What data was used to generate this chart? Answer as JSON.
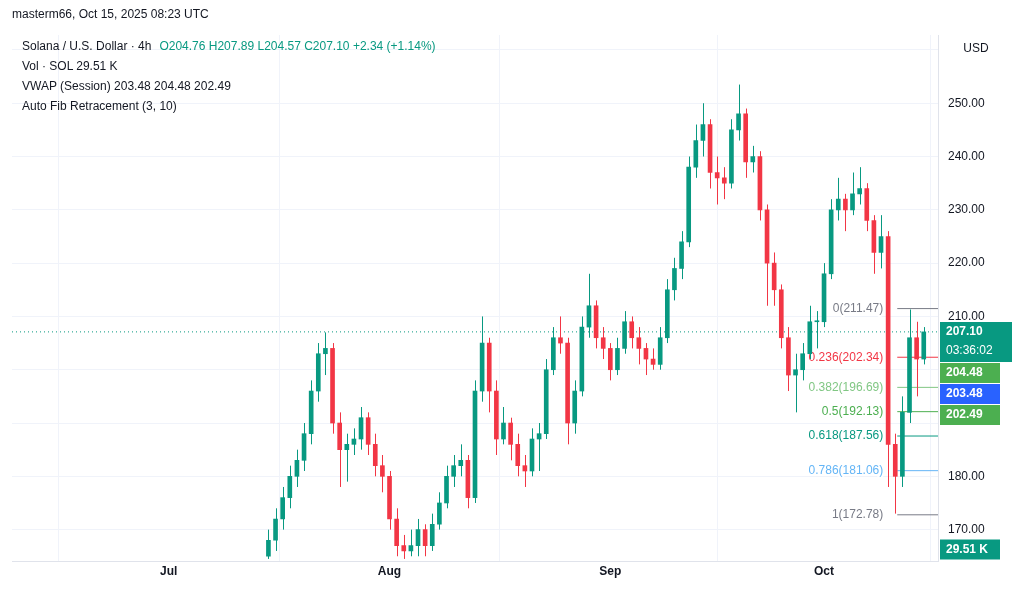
{
  "chart_data": {
    "type": "candlestick",
    "title": "Solana / U.S. Dollar · 4h",
    "subtitle": "O204.76 H207.89 L204.57 C207.10 +2.34 (+1.14%)",
    "annotations": [
      "Vol · SOL 29.51 K",
      "VWAP (Session) 203.48 204.48 202.49",
      "Auto Fib Retracement (3, 10)",
      "USD",
      "03:36:02",
      "29.51 K",
      "masterm66, Oct 15, 2025 08:23 UTC",
      "204.48",
      "203.48",
      "202.49"
    ],
    "x": [
      "2025-07-15",
      "2025-07-16",
      "2025-07-17",
      "2025-07-18",
      "2025-07-19",
      "2025-07-20",
      "2025-07-21",
      "2025-07-22",
      "2025-07-23",
      "2025-07-24",
      "2025-07-25",
      "2025-07-26",
      "2025-07-27",
      "2025-07-28",
      "2025-07-29",
      "2025-07-30",
      "2025-07-31",
      "2025-08-01",
      "2025-08-02",
      "2025-08-03",
      "2025-08-04",
      "2025-08-05",
      "2025-08-06",
      "2025-08-07",
      "2025-08-08",
      "2025-08-09",
      "2025-08-10",
      "2025-08-11",
      "2025-08-12",
      "2025-08-13",
      "2025-08-14",
      "2025-08-15",
      "2025-08-16",
      "2025-08-17",
      "2025-08-18",
      "2025-08-19",
      "2025-08-20",
      "2025-08-21",
      "2025-08-22",
      "2025-08-23",
      "2025-08-24",
      "2025-08-25",
      "2025-08-26",
      "2025-08-27",
      "2025-08-28",
      "2025-08-29",
      "2025-08-30",
      "2025-08-31",
      "2025-09-01",
      "2025-09-02",
      "2025-09-03",
      "2025-09-04",
      "2025-09-05",
      "2025-09-06",
      "2025-09-07",
      "2025-09-08",
      "2025-09-09",
      "2025-09-10",
      "2025-09-11",
      "2025-09-12",
      "2025-09-13",
      "2025-09-14",
      "2025-09-15",
      "2025-09-16",
      "2025-09-17",
      "2025-09-18",
      "2025-09-19",
      "2025-09-20",
      "2025-09-21",
      "2025-09-22",
      "2025-09-23",
      "2025-09-24",
      "2025-09-25",
      "2025-09-26",
      "2025-09-27",
      "2025-09-28",
      "2025-09-29",
      "2025-09-30",
      "2025-10-01",
      "2025-10-02",
      "2025-10-03",
      "2025-10-04",
      "2025-10-05",
      "2025-10-06",
      "2025-10-07",
      "2025-10-08",
      "2025-10-09",
      "2025-10-10",
      "2025-10-11",
      "2025-10-12",
      "2025-10-13",
      "2025-10-14",
      "2025-10-15"
    ],
    "ohlc": [
      [
        165,
        170,
        164.5,
        168
      ],
      [
        168,
        174,
        166,
        172
      ],
      [
        172,
        178,
        170,
        176
      ],
      [
        176,
        182,
        174,
        180
      ],
      [
        180,
        185,
        178,
        183
      ],
      [
        183,
        190,
        181,
        188
      ],
      [
        188,
        198,
        186,
        196
      ],
      [
        196,
        205,
        194,
        203
      ],
      [
        203,
        207,
        199,
        204
      ],
      [
        204,
        205,
        188,
        190
      ],
      [
        190,
        192,
        178,
        185
      ],
      [
        185,
        188,
        179,
        186
      ],
      [
        186,
        189,
        184,
        187
      ],
      [
        187,
        193,
        185,
        191
      ],
      [
        191,
        192,
        184,
        186
      ],
      [
        186,
        188,
        180,
        182
      ],
      [
        182,
        184,
        177,
        180
      ],
      [
        180,
        181,
        170,
        172
      ],
      [
        172,
        174,
        165,
        167
      ],
      [
        167,
        169,
        164.5,
        166
      ],
      [
        166,
        170,
        165,
        167
      ],
      [
        167,
        172,
        165,
        170
      ],
      [
        170,
        171,
        165,
        167
      ],
      [
        167,
        173,
        166,
        171
      ],
      [
        171,
        177,
        170,
        175
      ],
      [
        175,
        182,
        174,
        180
      ],
      [
        180,
        184,
        178,
        182
      ],
      [
        182,
        186,
        180,
        183
      ],
      [
        183,
        184,
        174,
        176
      ],
      [
        176,
        198,
        175,
        196
      ],
      [
        196,
        210,
        194,
        205
      ],
      [
        205,
        206,
        192,
        196
      ],
      [
        196,
        198,
        184,
        187
      ],
      [
        187,
        193,
        186,
        190
      ],
      [
        190,
        191,
        183,
        186
      ],
      [
        186,
        188,
        180,
        182
      ],
      [
        182,
        184,
        178,
        181
      ],
      [
        181,
        189,
        180,
        187
      ],
      [
        187,
        190,
        181,
        188
      ],
      [
        188,
        202,
        187,
        200
      ],
      [
        200,
        208,
        199,
        206
      ],
      [
        206,
        210,
        203,
        205
      ],
      [
        205,
        206,
        186,
        190
      ],
      [
        190,
        198,
        188,
        196
      ],
      [
        196,
        210,
        195,
        208
      ],
      [
        208,
        218,
        206,
        212
      ],
      [
        212,
        213,
        204,
        206
      ],
      [
        206,
        208,
        202,
        204
      ],
      [
        204,
        205,
        198,
        200
      ],
      [
        200,
        206,
        199,
        204
      ],
      [
        204,
        211,
        203,
        209
      ],
      [
        209,
        210,
        204,
        206
      ],
      [
        206,
        208,
        201,
        204
      ],
      [
        204,
        205,
        199,
        202
      ],
      [
        202,
        204,
        200,
        201
      ],
      [
        201,
        208,
        200,
        206
      ],
      [
        206,
        217,
        205,
        215
      ],
      [
        215,
        221,
        213,
        219
      ],
      [
        219,
        226,
        217,
        224
      ],
      [
        224,
        240,
        223,
        238
      ],
      [
        238,
        246,
        236,
        243
      ],
      [
        243,
        250,
        240,
        246
      ],
      [
        246,
        247,
        234,
        237
      ],
      [
        237,
        240,
        231,
        236
      ],
      [
        236,
        238,
        232,
        235
      ],
      [
        235,
        247,
        234,
        245
      ],
      [
        245,
        253.5,
        243,
        248
      ],
      [
        248,
        249,
        236,
        239
      ],
      [
        239,
        242,
        237,
        240
      ],
      [
        240,
        241,
        228,
        230
      ],
      [
        230,
        231,
        212,
        220
      ],
      [
        220,
        222,
        212,
        215
      ],
      [
        215,
        216,
        204,
        206
      ],
      [
        206,
        208,
        196,
        199
      ],
      [
        199,
        203,
        192,
        200
      ],
      [
        200,
        205,
        198,
        203
      ],
      [
        203,
        212,
        202,
        209
      ],
      [
        209,
        211,
        204,
        209
      ],
      [
        209,
        220,
        208,
        218
      ],
      [
        218,
        232,
        217,
        230
      ],
      [
        230,
        236,
        228,
        232
      ],
      [
        232,
        233,
        226,
        230
      ],
      [
        230,
        237,
        229,
        233
      ],
      [
        233,
        238,
        231,
        234
      ],
      [
        234,
        235,
        226,
        228
      ],
      [
        228,
        229,
        218,
        222
      ],
      [
        222,
        229,
        219,
        225
      ],
      [
        225,
        226,
        178,
        186
      ],
      [
        186,
        188,
        173,
        180
      ],
      [
        180,
        195,
        178,
        192
      ],
      [
        192,
        211.3,
        190,
        206
      ],
      [
        206,
        209,
        195,
        202
      ],
      [
        202,
        208,
        201,
        207.1
      ]
    ],
    "colors": [
      "#089981",
      "#089981",
      "#089981",
      "#089981",
      "#089981",
      "#089981",
      "#089981",
      "#089981",
      "#089981",
      "#f23645",
      "#f23645",
      "#089981",
      "#089981",
      "#089981",
      "#f23645",
      "#f23645",
      "#f23645",
      "#f23645",
      "#f23645",
      "#f23645",
      "#089981",
      "#089981",
      "#f23645",
      "#089981",
      "#089981",
      "#089981",
      "#089981",
      "#089981",
      "#f23645",
      "#089981",
      "#089981",
      "#f23645",
      "#f23645",
      "#089981",
      "#f23645",
      "#f23645",
      "#f23645",
      "#089981",
      "#089981",
      "#089981",
      "#089981",
      "#f23645",
      "#f23645",
      "#089981",
      "#089981",
      "#089981",
      "#f23645",
      "#f23645",
      "#f23645",
      "#089981",
      "#089981",
      "#f23645",
      "#f23645",
      "#f23645",
      "#f23645",
      "#089981",
      "#089981",
      "#089981",
      "#089981",
      "#089981",
      "#089981",
      "#089981",
      "#f23645",
      "#f23645",
      "#f23645",
      "#089981",
      "#089981",
      "#f23645",
      "#089981",
      "#f23645",
      "#f23645",
      "#f23645",
      "#f23645",
      "#f23645",
      "#089981",
      "#089981",
      "#089981",
      "#089981",
      "#089981",
      "#089981",
      "#089981",
      "#f23645",
      "#089981",
      "#089981",
      "#f23645",
      "#f23645",
      "#089981",
      "#f23645",
      "#f23645",
      "#089981",
      "#089981",
      "#f23645",
      "#089981"
    ],
    "xlim": [
      "2025-06-09",
      "2025-10-17"
    ],
    "xticks": [
      {
        "value": "2025-07-01",
        "label": "Jul"
      },
      {
        "value": "2025-08-01",
        "label": "Aug"
      },
      {
        "value": "2025-09-01",
        "label": "Sep"
      },
      {
        "value": "2025-10-01",
        "label": "Oct"
      }
    ],
    "ylim": [
      164,
      262.8
    ],
    "yticks": [
      {
        "value": 170,
        "label": "170.00"
      },
      {
        "value": 180,
        "label": "180.00"
      },
      {
        "value": 190,
        "label": null
      },
      {
        "value": 200,
        "label": null
      },
      {
        "value": 210,
        "label": "210.00"
      },
      {
        "value": 220,
        "label": "220.00"
      },
      {
        "value": 230,
        "label": "230.00"
      },
      {
        "value": 240,
        "label": "240.00"
      },
      {
        "value": 250,
        "label": "250.00"
      },
      {
        "value": 260,
        "label": null
      }
    ],
    "ref_lines": [
      {
        "axis": "y",
        "value": 207.1,
        "label": "207.10",
        "color": "#089981",
        "line_style": "dotted"
      },
      {
        "axis": "y",
        "value": 211.47,
        "label": "0(211.47)",
        "color": "#787b86",
        "line_style": "solid"
      },
      {
        "axis": "y",
        "value": 202.34,
        "label": "0.236(202.34)",
        "color": "#f23645",
        "line_style": "solid"
      },
      {
        "axis": "y",
        "value": 196.69,
        "label": "0.382(196.69)",
        "color": "#81c784",
        "line_style": "solid"
      },
      {
        "axis": "y",
        "value": 192.13,
        "label": "0.5(192.13)",
        "color": "#4caf50",
        "line_style": "solid"
      },
      {
        "axis": "y",
        "value": 187.56,
        "label": "0.618(187.56)",
        "color": "#089981",
        "line_style": "solid"
      },
      {
        "axis": "y",
        "value": 181.06,
        "label": "0.786(181.06)",
        "color": "#64b5f6",
        "line_style": "solid"
      },
      {
        "axis": "y",
        "value": 172.78,
        "label": "1(172.78)",
        "color": "#787b86",
        "line_style": "solid"
      }
    ],
    "grid": true
  }
}
